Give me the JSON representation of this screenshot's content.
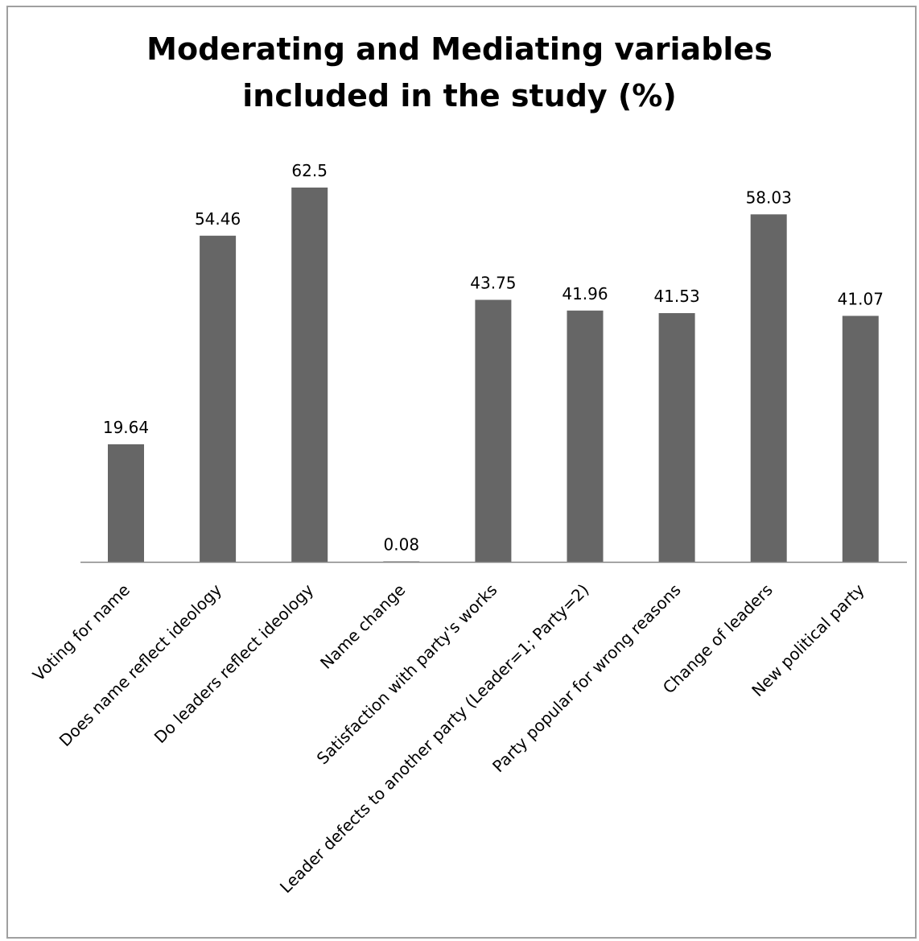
{
  "chart_data": {
    "type": "bar",
    "title_lines": [
      "Moderating and Mediating variables",
      "included in the study (%)"
    ],
    "categories": [
      "Voting for name",
      "Does name reflect ideology",
      "Do leaders reflect ideology",
      "Name change",
      "Satisfaction with party's works",
      "Leader defects to another party (Leader=1; Party=2)",
      "Party popular for wrong reasons",
      "Change of leaders",
      "New political party"
    ],
    "values": [
      19.64,
      54.46,
      62.5,
      0.08,
      43.75,
      41.96,
      41.53,
      58.03,
      41.07
    ],
    "data_labels": [
      "19.64",
      "54.46",
      "62.5",
      "0.08",
      "43.75",
      "41.96",
      "41.53",
      "58.03",
      "41.07"
    ],
    "xlabel": "",
    "ylabel": "",
    "y_axis_visible": false,
    "grid": false,
    "legend": "none",
    "bar_color": "#666666",
    "axis_color": "#868686"
  }
}
